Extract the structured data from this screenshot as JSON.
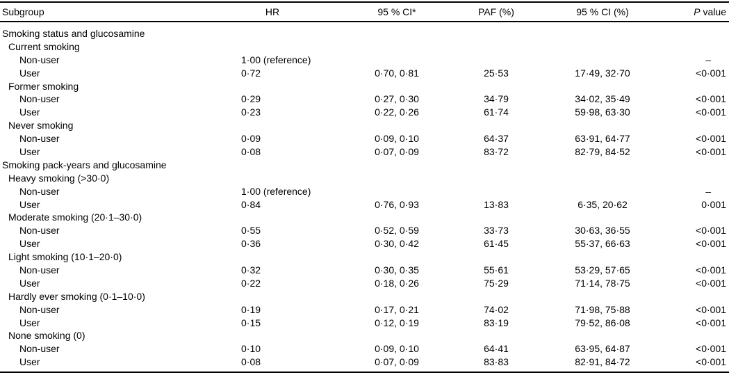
{
  "page": {
    "background": "#ffffff",
    "text_color": "#000000",
    "rule_color": "#000000"
  },
  "table": {
    "header": {
      "subgroup": "Subgroup",
      "hr": "HR",
      "ci": "95 % CI*",
      "paf": "PAF (%)",
      "ci_pct": "95 % CI (%)",
      "p_italic": "P",
      "p_rest": "value"
    },
    "rows": [
      {
        "indent": 0,
        "subgroup": "Smoking status and glucosamine"
      },
      {
        "indent": 1,
        "subgroup": "Current smoking"
      },
      {
        "indent": 2,
        "subgroup": "Non-user",
        "hr": "1·00 (reference)",
        "p": "–",
        "p_dash": true
      },
      {
        "indent": 2,
        "subgroup": "User",
        "hr": "0·72",
        "ci": "0·70, 0·81",
        "paf": "25·53",
        "ci_pct": "17·49, 32·70",
        "p": "<0·001"
      },
      {
        "indent": 1,
        "subgroup": "Former smoking"
      },
      {
        "indent": 2,
        "subgroup": "Non-user",
        "hr": "0·29",
        "ci": "0·27, 0·30",
        "paf": "34·79",
        "ci_pct": "34·02, 35·49",
        "p": "<0·001"
      },
      {
        "indent": 2,
        "subgroup": "User",
        "hr": "0·23",
        "ci": "0·22, 0·26",
        "paf": "61·74",
        "ci_pct": "59·98, 63·30",
        "p": "<0·001"
      },
      {
        "indent": 1,
        "subgroup": "Never smoking"
      },
      {
        "indent": 2,
        "subgroup": "Non-user",
        "hr": "0·09",
        "ci": "0·09, 0·10",
        "paf": "64·37",
        "ci_pct": "63·91, 64·77",
        "p": "<0·001"
      },
      {
        "indent": 2,
        "subgroup": "User",
        "hr": "0·08",
        "ci": "0·07, 0·09",
        "paf": "83·72",
        "ci_pct": "82·79, 84·52",
        "p": "<0·001"
      },
      {
        "indent": 0,
        "subgroup": "Smoking pack-years and glucosamine"
      },
      {
        "indent": 1,
        "subgroup": "Heavy smoking (>30·0)"
      },
      {
        "indent": 2,
        "subgroup": "Non-user",
        "hr": "1·00 (reference)",
        "p": "–",
        "p_dash": true
      },
      {
        "indent": 2,
        "subgroup": "User",
        "hr": "0·84",
        "ci": "0·76, 0·93",
        "paf": "13·83",
        "ci_pct": "6·35, 20·62",
        "p": "0·001"
      },
      {
        "indent": 1,
        "subgroup": "Moderate smoking (20·1–30·0)"
      },
      {
        "indent": 2,
        "subgroup": "Non-user",
        "hr": "0·55",
        "ci": "0·52, 0·59",
        "paf": "33·73",
        "ci_pct": "30·63, 36·55",
        "p": "<0·001"
      },
      {
        "indent": 2,
        "subgroup": "User",
        "hr": "0·36",
        "ci": "0·30, 0·42",
        "paf": "61·45",
        "ci_pct": "55·37, 66·63",
        "p": "<0·001"
      },
      {
        "indent": 1,
        "subgroup": "Light smoking (10·1–20·0)"
      },
      {
        "indent": 2,
        "subgroup": "Non-user",
        "hr": "0·32",
        "ci": "0·30, 0·35",
        "paf": "55·61",
        "ci_pct": "53·29, 57·65",
        "p": "<0·001"
      },
      {
        "indent": 2,
        "subgroup": "User",
        "hr": "0·22",
        "ci": "0·18, 0·26",
        "paf": "75·29",
        "ci_pct": "71·14, 78·75",
        "p": "<0·001"
      },
      {
        "indent": 1,
        "subgroup": "Hardly ever smoking (0·1–10·0)"
      },
      {
        "indent": 2,
        "subgroup": "Non-user",
        "hr": "0·19",
        "ci": "0·17, 0·21",
        "paf": "74·02",
        "ci_pct": "71·98, 75·88",
        "p": "<0·001"
      },
      {
        "indent": 2,
        "subgroup": "User",
        "hr": "0·15",
        "ci": "0·12, 0·19",
        "paf": "83·19",
        "ci_pct": "79·52, 86·08",
        "p": "<0·001"
      },
      {
        "indent": 1,
        "subgroup": "None smoking (0)"
      },
      {
        "indent": 2,
        "subgroup": "Non-user",
        "hr": "0·10",
        "ci": "0·09, 0·10",
        "paf": "64·41",
        "ci_pct": "63·95, 64·87",
        "p": "<0·001"
      },
      {
        "indent": 2,
        "subgroup": "User",
        "hr": "0·08",
        "ci": "0·07, 0·09",
        "paf": "83·83",
        "ci_pct": "82·91, 84·72",
        "p": "<0·001"
      }
    ]
  }
}
